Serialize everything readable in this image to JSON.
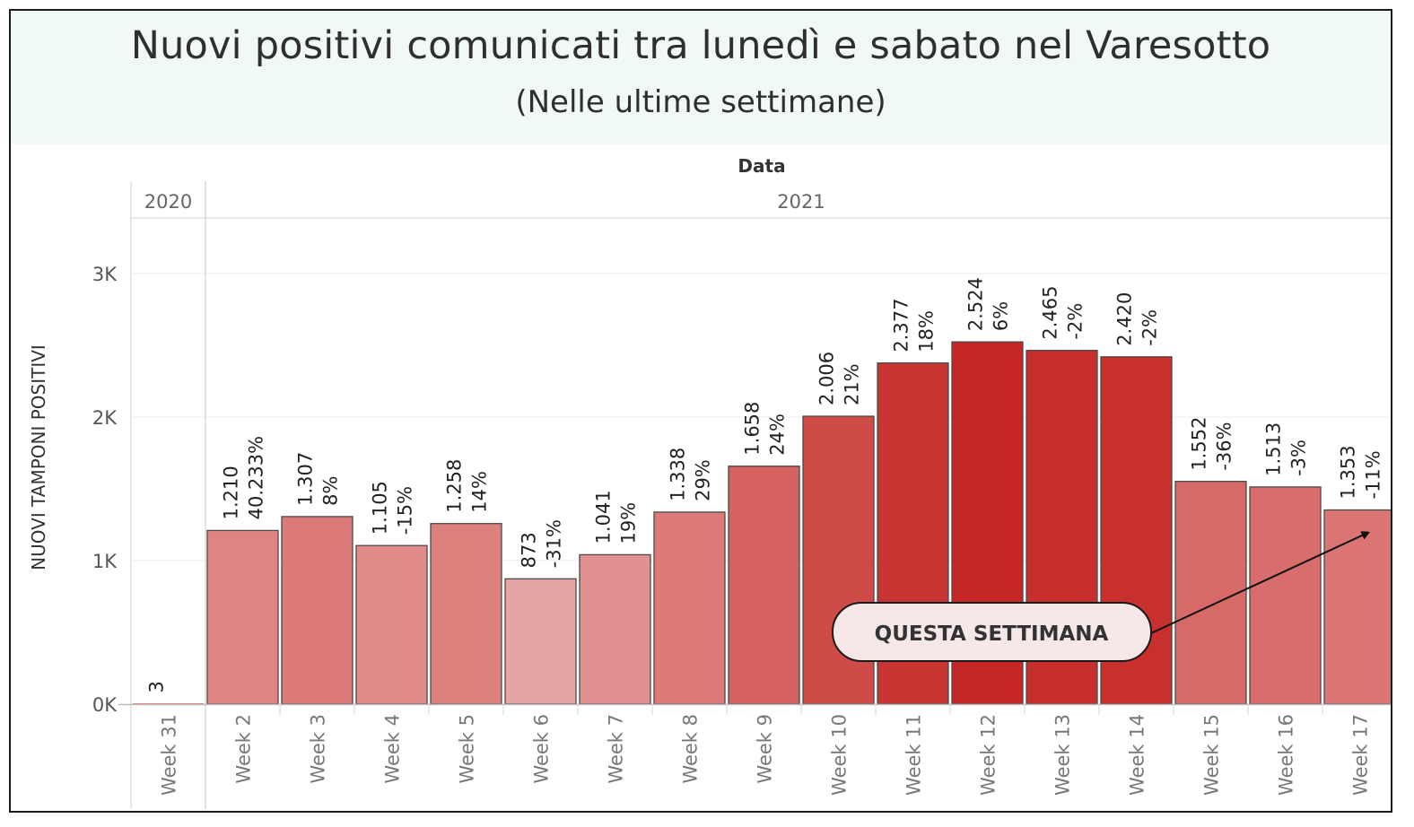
{
  "header": {
    "title": "Nuovi positivi comunicati tra lunedì e sabato nel Varesotto",
    "subtitle": "(Nelle ultime settimane)"
  },
  "chart_data": {
    "type": "bar",
    "column_header": "Data",
    "year_groups": [
      {
        "label": "2020",
        "categories": [
          "Week 31"
        ]
      },
      {
        "label": "2021",
        "categories": [
          "Week 2",
          "Week 3",
          "Week 4",
          "Week 5",
          "Week 6",
          "Week 7",
          "Week 8",
          "Week 9",
          "Week 10",
          "Week 11",
          "Week 12",
          "Week 13",
          "Week 14",
          "Week 15",
          "Week 16",
          "Week 17"
        ]
      }
    ],
    "categories": [
      "Week 31",
      "Week 2",
      "Week 3",
      "Week 4",
      "Week 5",
      "Week 6",
      "Week 7",
      "Week 8",
      "Week 9",
      "Week 10",
      "Week 11",
      "Week 12",
      "Week 13",
      "Week 14",
      "Week 15",
      "Week 16",
      "Week 17"
    ],
    "values": [
      3,
      1210,
      1307,
      1105,
      1258,
      873,
      1041,
      1338,
      1658,
      2006,
      2377,
      2524,
      2465,
      2420,
      1552,
      1513,
      1353
    ],
    "value_labels": [
      "3",
      "1.210",
      "1.307",
      "1.105",
      "1.258",
      "873",
      "1.041",
      "1.338",
      "1.658",
      "2.006",
      "2.377",
      "2.524",
      "2.465",
      "2.420",
      "1.552",
      "1.513",
      "1.353"
    ],
    "change_labels": [
      "",
      "40.233%",
      "8%",
      "-15%",
      "14%",
      "-31%",
      "19%",
      "29%",
      "24%",
      "21%",
      "18%",
      "6%",
      "-2%",
      "-2%",
      "-36%",
      "-3%",
      "-11%"
    ],
    "bar_colors": [
      "#df7f7d",
      "#de8584",
      "#dc7a78",
      "#df8c8a",
      "#dd807e",
      "#e4a5a4",
      "#e09190",
      "#dc7b79",
      "#d5625f",
      "#ce4b48",
      "#c93432",
      "#c42726",
      "#c72e2c",
      "#c8302e",
      "#d76a67",
      "#d86e6b",
      "#da7573"
    ],
    "ylabel": "NUOVI TAMPONI POSITIVI",
    "ylim": [
      0,
      3400
    ],
    "yticks": [
      0,
      1000,
      2000,
      3000
    ],
    "ytick_labels": [
      "0K",
      "1K",
      "2K",
      "3K"
    ],
    "grid": true,
    "annotation": {
      "text": "QUESTA SETTIMANA",
      "points_to": "Week 17"
    }
  }
}
